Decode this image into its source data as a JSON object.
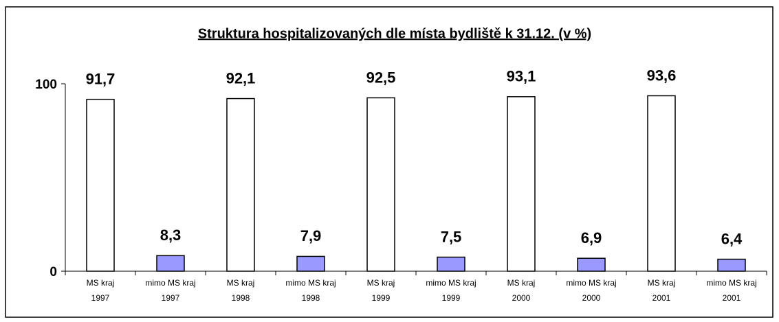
{
  "chart_data": {
    "type": "bar",
    "title": "Struktura hospitalizovaných dle místa bydliště k 31.12. (v %)",
    "categories": [
      [
        "MS kraj",
        "1997"
      ],
      [
        "mimo MS kraj",
        "1997"
      ],
      [
        "MS kraj",
        "1998"
      ],
      [
        "mimo MS kraj",
        "1998"
      ],
      [
        "MS kraj",
        "1999"
      ],
      [
        "mimo MS kraj",
        "1999"
      ],
      [
        "MS kraj",
        "2000"
      ],
      [
        "mimo MS kraj",
        "2000"
      ],
      [
        "MS kraj",
        "2001"
      ],
      [
        "mimo MS kraj",
        "2001"
      ]
    ],
    "values": [
      91.7,
      8.3,
      92.1,
      7.9,
      92.5,
      7.5,
      93.1,
      6.9,
      93.6,
      6.4
    ],
    "value_labels": [
      "91,7",
      "8,3",
      "92,1",
      "7,9",
      "92,5",
      "7,5",
      "93,1",
      "6,9",
      "93,6",
      "6,4"
    ],
    "colors": [
      "#ffffff",
      "#9999ff",
      "#ffffff",
      "#9999ff",
      "#ffffff",
      "#9999ff",
      "#ffffff",
      "#9999ff",
      "#ffffff",
      "#9999ff"
    ],
    "ylim": [
      0,
      100
    ],
    "yticks": [
      0,
      100
    ]
  }
}
